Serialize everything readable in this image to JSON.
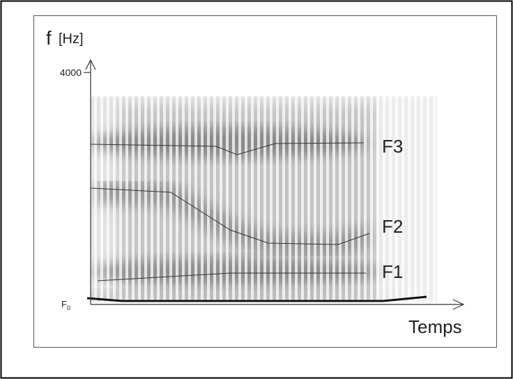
{
  "axis": {
    "y_symbol": "f",
    "y_unit": "[Hz]",
    "y_tick": 4000,
    "x_label": "Temps",
    "f0_letter": "F",
    "f0_sub": "0"
  },
  "formants": [
    {
      "label": "F3"
    },
    {
      "label": "F2"
    },
    {
      "label": "F1"
    }
  ]
}
